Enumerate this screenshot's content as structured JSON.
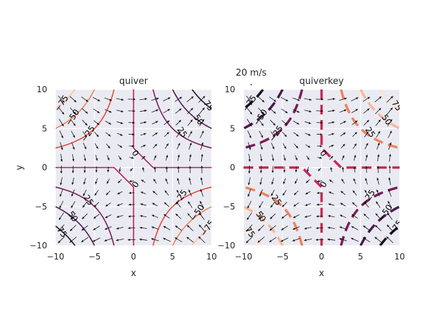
{
  "chart_data": [
    {
      "type": "contour",
      "title": "quiver",
      "xlabel": "x",
      "ylabel": "y",
      "xlim": [
        -10,
        10
      ],
      "ylim": [
        -10,
        10
      ],
      "xticks": [
        -10,
        -5,
        0,
        5,
        10
      ],
      "yticks": [
        -10,
        -5,
        0,
        5,
        10
      ],
      "xtick_labels": [
        "−10",
        "−5",
        "0",
        "5",
        "10"
      ],
      "ytick_labels": [
        "−10",
        "−5",
        "0",
        "5",
        "10"
      ],
      "grid": true,
      "background": "#eaeaf2",
      "field": "z = x * y",
      "contour_levels": [
        -75,
        -50,
        -25,
        0,
        25,
        50,
        75
      ],
      "contour_labels": [
        "−75",
        "−50",
        "−25",
        "0",
        "25",
        "50",
        "75"
      ],
      "contour_colors": [
        "#f9c6a4",
        "#f0825b",
        "#e34b3a",
        "#b81d4d",
        "#7b1c5a",
        "#4b1a4f",
        "#1f0e26"
      ],
      "linestyle": "solid",
      "quiver": {
        "u": "y",
        "v": "x",
        "grid_step": 1.5
      }
    },
    {
      "type": "contour",
      "title": "quiverkey",
      "xlabel": "x",
      "ylabel": "",
      "xlim": [
        -10,
        10
      ],
      "ylim": [
        -10,
        10
      ],
      "xticks": [
        -10,
        -5,
        0,
        5,
        10
      ],
      "yticks": [
        -10,
        -5,
        0,
        5,
        10
      ],
      "xtick_labels": [
        "−10",
        "−5",
        "0",
        "5",
        "10"
      ],
      "ytick_labels": [
        "−10",
        "−5",
        "0",
        "5",
        "10"
      ],
      "grid": true,
      "background": "#eaeaf2",
      "field": "z = x * y",
      "contour_levels": [
        -75,
        -50,
        -25,
        0,
        25,
        50,
        75
      ],
      "contour_labels": [
        "−75",
        "−50",
        "−25",
        "0",
        "25",
        "50",
        "75"
      ],
      "contour_colors": [
        "#1f0e26",
        "#4b1a4f",
        "#7b1c5a",
        "#c72a52",
        "#f0825b",
        "#f8b796",
        "#fde4d3"
      ],
      "linestyle": "dashed",
      "quiver": {
        "u": "y",
        "v": "x",
        "grid_step": 1.5
      },
      "quiverkey_label": "20 m/s"
    }
  ]
}
